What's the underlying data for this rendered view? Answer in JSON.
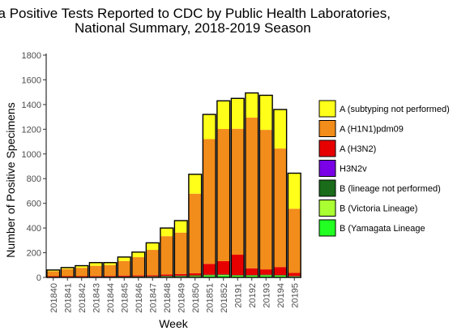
{
  "chart_data": {
    "type": "bar",
    "stacked": true,
    "title_line1": "Influenza Positive Tests Reported to CDC by Public Health Laboratories,",
    "title_line2": "National Summary, 2018-2019 Season",
    "xlabel": "Week",
    "ylabel": "Number of Positive Specimens",
    "ylim": [
      0,
      1800
    ],
    "yticks": [
      "0",
      "200",
      "400",
      "600",
      "800",
      "1000",
      "1200",
      "1400",
      "1600",
      "1800"
    ],
    "categories": [
      "201840",
      "201841",
      "201842",
      "201843",
      "201844",
      "201845",
      "201846",
      "201847",
      "201848",
      "201849",
      "201850",
      "201851",
      "201852",
      "20191",
      "20192",
      "20193",
      "20194",
      "20195"
    ],
    "series": [
      {
        "name": "B (Yamagata Lineage",
        "color": "#22ff22",
        "values": [
          1,
          1,
          1,
          2,
          2,
          2,
          2,
          3,
          4,
          5,
          6,
          12,
          14,
          10,
          10,
          12,
          10,
          6
        ]
      },
      {
        "name": "B (Victoria Lineage)",
        "color": "#aaff33",
        "values": [
          1,
          1,
          1,
          1,
          1,
          2,
          2,
          2,
          3,
          3,
          4,
          4,
          4,
          4,
          4,
          4,
          4,
          2
        ]
      },
      {
        "name": "B (lineage not performed)",
        "color": "#1a6b1a",
        "values": [
          2,
          2,
          2,
          2,
          3,
          3,
          4,
          4,
          5,
          6,
          7,
          6,
          6,
          5,
          5,
          6,
          5,
          3
        ]
      },
      {
        "name": "H3N2v",
        "color": "#7a00e6",
        "values": [
          0,
          0,
          0,
          0,
          0,
          0,
          0,
          0,
          0,
          0,
          0,
          0,
          0,
          0,
          0,
          0,
          0,
          0
        ]
      },
      {
        "name": "A (H3N2)",
        "color": "#e60000",
        "values": [
          6,
          6,
          6,
          6,
          6,
          8,
          8,
          9,
          12,
          14,
          16,
          88,
          108,
          165,
          55,
          43,
          65,
          25
        ]
      },
      {
        "name": "A (H1N1)pdm09",
        "color": "#f28c1a",
        "values": [
          40,
          58,
          68,
          83,
          88,
          118,
          148,
          205,
          310,
          335,
          645,
          1010,
          1070,
          1020,
          1220,
          1130,
          960,
          520
        ]
      },
      {
        "name": "A (subtyping not performed)",
        "color": "#ffff1a",
        "values": [
          10,
          12,
          17,
          26,
          20,
          32,
          41,
          57,
          66,
          97,
          157,
          200,
          228,
          246,
          200,
          280,
          316,
          288
        ]
      }
    ],
    "legend_order": [
      "A (subtyping not performed)",
      "A (H1N1)pdm09",
      "A (H3N2)",
      "H3N2v",
      "B (lineage not performed)",
      "B (Victoria Lineage)",
      "B (Yamagata Lineage"
    ],
    "legend_position": "right",
    "grid": false
  }
}
